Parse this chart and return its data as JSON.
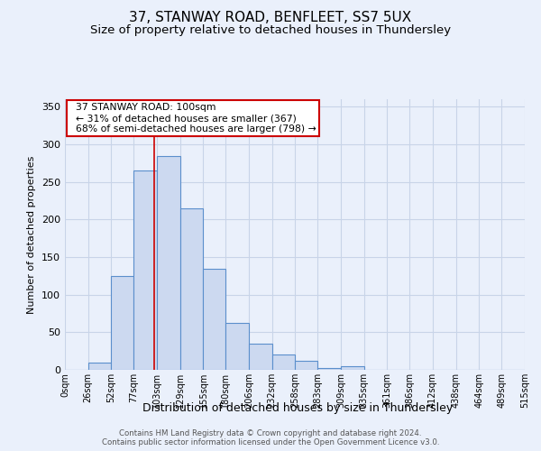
{
  "title": "37, STANWAY ROAD, BENFLEET, SS7 5UX",
  "subtitle": "Size of property relative to detached houses in Thundersley",
  "xlabel": "Distribution of detached houses by size in Thundersley",
  "ylabel": "Number of detached properties",
  "footer_line1": "Contains HM Land Registry data © Crown copyright and database right 2024.",
  "footer_line2": "Contains public sector information licensed under the Open Government Licence v3.0.",
  "bar_edges": [
    0,
    26,
    52,
    77,
    103,
    129,
    155,
    180,
    206,
    232,
    258,
    283,
    309,
    335,
    361,
    386,
    412,
    438,
    464,
    489,
    515
  ],
  "bar_heights": [
    0,
    10,
    125,
    265,
    285,
    215,
    135,
    62,
    35,
    20,
    12,
    2,
    5,
    0,
    0,
    0,
    0,
    0,
    0,
    0
  ],
  "bar_fill_color": "#ccd9f0",
  "bar_edge_color": "#5b8fcc",
  "grid_color": "#c8d4e8",
  "bg_color": "#eaf0fb",
  "property_line_x": 100,
  "property_line_color": "#cc0000",
  "annotation_text": "  37 STANWAY ROAD: 100sqm\n  ← 31% of detached houses are smaller (367)\n  68% of semi-detached houses are larger (798) →",
  "annotation_box_color": "#cc0000",
  "ylim": [
    0,
    360
  ],
  "yticks": [
    0,
    50,
    100,
    150,
    200,
    250,
    300,
    350
  ],
  "title_fontsize": 11,
  "subtitle_fontsize": 9.5,
  "tick_label_fontsize": 7,
  "ylabel_fontsize": 8,
  "xlabel_fontsize": 9
}
